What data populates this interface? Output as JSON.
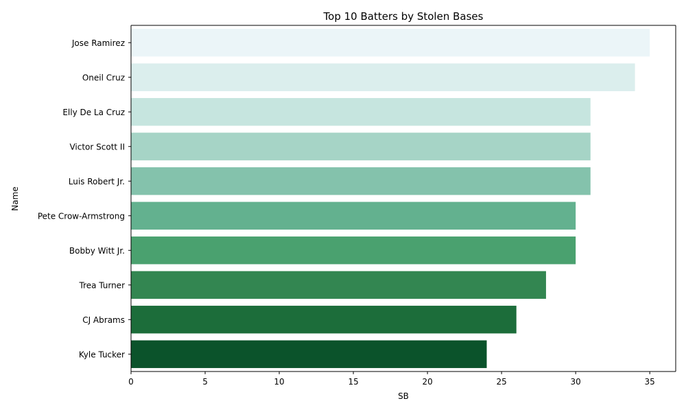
{
  "chart_data": {
    "type": "bar",
    "orientation": "horizontal",
    "title": "Top 10 Batters by Stolen Bases",
    "xlabel": "SB",
    "ylabel": "Name",
    "categories": [
      "Jose Ramirez",
      "Oneil Cruz",
      "Elly De La Cruz",
      "Victor Scott II",
      "Luis Robert Jr.",
      "Pete Crow-Armstrong",
      "Bobby Witt Jr.",
      "Trea Turner",
      "CJ Abrams",
      "Kyle Tucker"
    ],
    "values": [
      35,
      34,
      31,
      31,
      31,
      30,
      30,
      28,
      26,
      24
    ],
    "colors": [
      "#ebf5f8",
      "#dbeeed",
      "#c6e5df",
      "#a6d4c6",
      "#84c2ac",
      "#63b18f",
      "#4aa16f",
      "#338651",
      "#1c6d3a",
      "#0b532b"
    ],
    "xlim": [
      0,
      36.75
    ],
    "xticks": [
      0,
      5,
      10,
      15,
      20,
      25,
      30,
      35
    ],
    "grid": false,
    "legend": "none"
  }
}
